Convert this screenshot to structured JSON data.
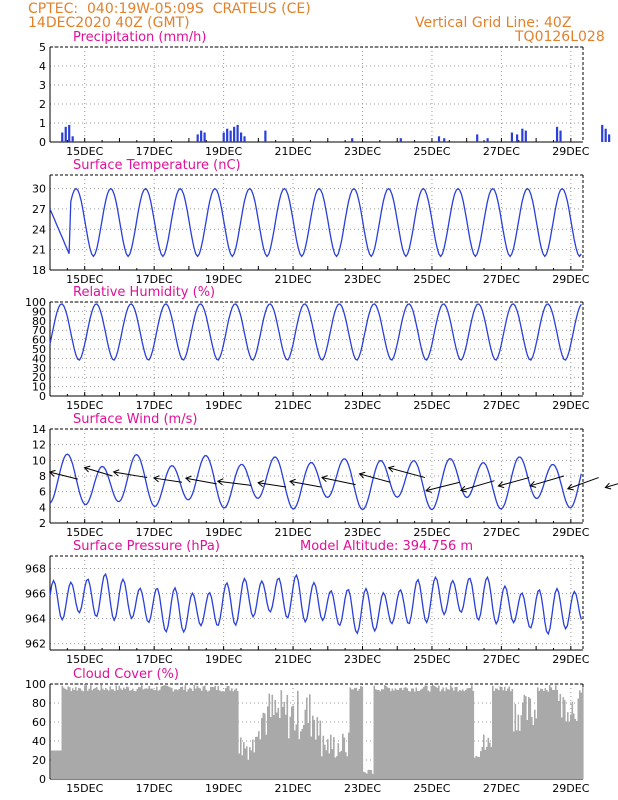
{
  "header": {
    "line1": "CPTEC:  040:19W-05:09S  CRATEUS (CE)",
    "line2": "14DEC2020 40Z (GMT)",
    "right1": "Vertical Grid Line: 40Z",
    "right2": "TQ0126L028"
  },
  "colors": {
    "line": "#2a3fd9",
    "bar": "#2a3fd9",
    "cloud": "#a9a9a9",
    "title": "#e0109a",
    "header": "#e3812b"
  },
  "date_ticks": [
    "15DEC",
    "17DEC",
    "19DEC",
    "21DEC",
    "23DEC",
    "25DEC",
    "27DEC",
    "29DEC"
  ],
  "chart_data": [
    {
      "type": "bar",
      "title": "Precipitation (mm/h)",
      "ylim": [
        0,
        5
      ],
      "yticks": [
        0,
        1,
        2,
        3,
        4,
        5
      ],
      "x_unit": "days since 14DEC2020 00Z",
      "bars": [
        [
          0.35,
          0.5
        ],
        [
          0.45,
          0.8
        ],
        [
          0.55,
          0.9
        ],
        [
          0.65,
          0.3
        ],
        [
          4.25,
          0.4
        ],
        [
          4.35,
          0.6
        ],
        [
          4.45,
          0.5
        ],
        [
          5.0,
          0.5
        ],
        [
          5.1,
          0.7
        ],
        [
          5.2,
          0.6
        ],
        [
          5.3,
          0.8
        ],
        [
          5.4,
          0.9
        ],
        [
          5.5,
          0.5
        ],
        [
          5.6,
          0.3
        ],
        [
          6.2,
          0.6
        ],
        [
          8.7,
          0.2
        ],
        [
          10.1,
          0.2
        ],
        [
          11.2,
          0.3
        ],
        [
          11.35,
          0.2
        ],
        [
          12.3,
          0.4
        ],
        [
          12.6,
          0.2
        ],
        [
          13.3,
          0.5
        ],
        [
          13.45,
          0.4
        ],
        [
          13.6,
          0.7
        ],
        [
          13.7,
          0.6
        ],
        [
          14.6,
          0.8
        ],
        [
          14.7,
          0.6
        ],
        [
          15.9,
          0.9
        ],
        [
          16.0,
          0.7
        ],
        [
          16.1,
          0.4
        ],
        [
          17.4,
          0.4
        ],
        [
          18.2,
          0.9
        ],
        [
          18.3,
          0.6
        ],
        [
          18.4,
          0.2
        ]
      ]
    },
    {
      "type": "line",
      "title": "Surface Temperature (nC)",
      "ylim": [
        18,
        32
      ],
      "yticks": [
        18,
        21,
        24,
        27,
        30
      ],
      "diurnal": {
        "min": 20,
        "max": 30,
        "peak_hour": 18
      }
    },
    {
      "type": "line",
      "title": "Relative Humidity (%)",
      "ylim": [
        0,
        100
      ],
      "yticks": [
        0,
        10,
        20,
        30,
        40,
        50,
        60,
        70,
        80,
        90,
        100
      ],
      "diurnal": {
        "min": 38,
        "max": 98,
        "peak_hour": 8
      }
    },
    {
      "type": "line",
      "title": "Surface Wind (m/s)",
      "ylim": [
        2,
        14
      ],
      "yticks": [
        2,
        4,
        6,
        8,
        10,
        12,
        14
      ],
      "diurnal": {
        "min": 4.5,
        "max": 10,
        "peak_hour": 12
      },
      "vectors": [
        {
          "x": 0.8,
          "y": 7.6,
          "u": -1.0,
          "v": 0.5
        },
        {
          "x": 1.8,
          "y": 8.0,
          "u": -1.0,
          "v": 0.6
        },
        {
          "x": 2.8,
          "y": 7.8,
          "u": -1.2,
          "v": 0.4
        },
        {
          "x": 3.8,
          "y": 7.2,
          "u": -1.0,
          "v": 0.3
        },
        {
          "x": 4.8,
          "y": 7.0,
          "u": -1.1,
          "v": 0.4
        },
        {
          "x": 5.8,
          "y": 6.8,
          "u": -1.2,
          "v": 0.3
        },
        {
          "x": 6.8,
          "y": 6.6,
          "u": -1.0,
          "v": 0.3
        },
        {
          "x": 7.8,
          "y": 6.6,
          "u": -1.1,
          "v": 0.4
        },
        {
          "x": 8.8,
          "y": 6.9,
          "u": -1.2,
          "v": 0.5
        },
        {
          "x": 9.8,
          "y": 7.2,
          "u": -1.1,
          "v": 0.6
        },
        {
          "x": 10.8,
          "y": 7.8,
          "u": -1.3,
          "v": 0.7
        },
        {
          "x": 11.8,
          "y": 7.2,
          "u": -1.2,
          "v": -0.6
        },
        {
          "x": 12.8,
          "y": 7.4,
          "u": -1.2,
          "v": -0.7
        },
        {
          "x": 13.8,
          "y": 7.8,
          "u": -1.1,
          "v": -0.6
        },
        {
          "x": 14.8,
          "y": 8.0,
          "u": -1.2,
          "v": -0.7
        },
        {
          "x": 15.8,
          "y": 7.8,
          "u": -1.1,
          "v": -0.8
        },
        {
          "x": 16.8,
          "y": 7.6,
          "u": -1.0,
          "v": -0.6
        },
        {
          "x": 17.8,
          "y": 7.8,
          "u": -1.0,
          "v": -0.7
        }
      ]
    },
    {
      "type": "line",
      "title": "Surface Pressure (hPa)",
      "subtitle": "Model Altitude: 394.756 m",
      "ylim": [
        961.5,
        969
      ],
      "yticks": [
        962,
        964,
        966,
        968
      ],
      "diurnal": {
        "mean": 965.2,
        "amp": 1.7
      }
    },
    {
      "type": "area",
      "title": "Cloud Cover (%)",
      "ylim": [
        0,
        100
      ],
      "yticks": [
        0,
        20,
        40,
        60,
        80,
        100
      ]
    }
  ]
}
